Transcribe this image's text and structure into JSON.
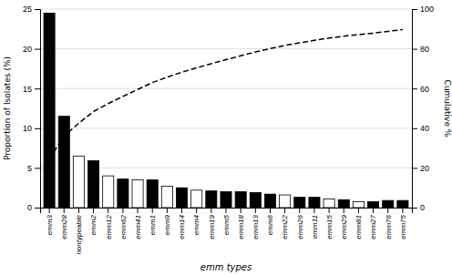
{
  "chart_data": {
    "type": "bar",
    "xlabel": "emm types",
    "ylabel": "Proportion of Isolates (%)",
    "y2label": "Cumulative %",
    "categories": [
      "emm3",
      "emm28",
      "nontypeable",
      "emm2",
      "emm12",
      "emm62",
      "emm41",
      "emm1",
      "emm9",
      "emm14",
      "emm4",
      "emm19",
      "emm5",
      "emm18",
      "emm13",
      "emm6",
      "emm22",
      "emm26",
      "emm11",
      "emm15",
      "emm29",
      "emm81",
      "emm27",
      "emm76",
      "emm75"
    ],
    "series": [
      {
        "type": "bar",
        "colors": [
          "black",
          "black",
          "white",
          "black",
          "white",
          "black",
          "white",
          "black",
          "white",
          "black",
          "white",
          "black",
          "black",
          "black",
          "black",
          "black",
          "white",
          "black",
          "black",
          "white",
          "black",
          "white",
          "black",
          "black",
          "black"
        ],
        "values": [
          24.5,
          11.5,
          6.5,
          5.9,
          4.0,
          3.6,
          3.5,
          3.5,
          2.7,
          2.5,
          2.2,
          2.1,
          2.0,
          2.0,
          1.9,
          1.7,
          1.6,
          1.3,
          1.3,
          1.1,
          1.0,
          0.75,
          0.75,
          0.9,
          0.9
        ]
      },
      {
        "type": "line",
        "axis": "y2",
        "color": "black",
        "line_style": "dashed",
        "values": [
          24.5,
          36.0,
          42.5,
          48.4,
          52.4,
          56.0,
          59.5,
          63.0,
          65.7,
          68.2,
          70.4,
          72.5,
          74.5,
          76.5,
          78.4,
          80.1,
          81.7,
          83.0,
          84.3,
          85.4,
          86.4,
          87.15,
          87.9,
          88.8,
          89.7
        ]
      }
    ],
    "ylim": [
      0,
      25
    ],
    "yticks": [
      0,
      5,
      10,
      15,
      20,
      25
    ],
    "y2lim": [
      0,
      100
    ],
    "y2ticks": [
      0,
      20,
      40,
      60,
      80,
      100
    ],
    "grid": true
  }
}
